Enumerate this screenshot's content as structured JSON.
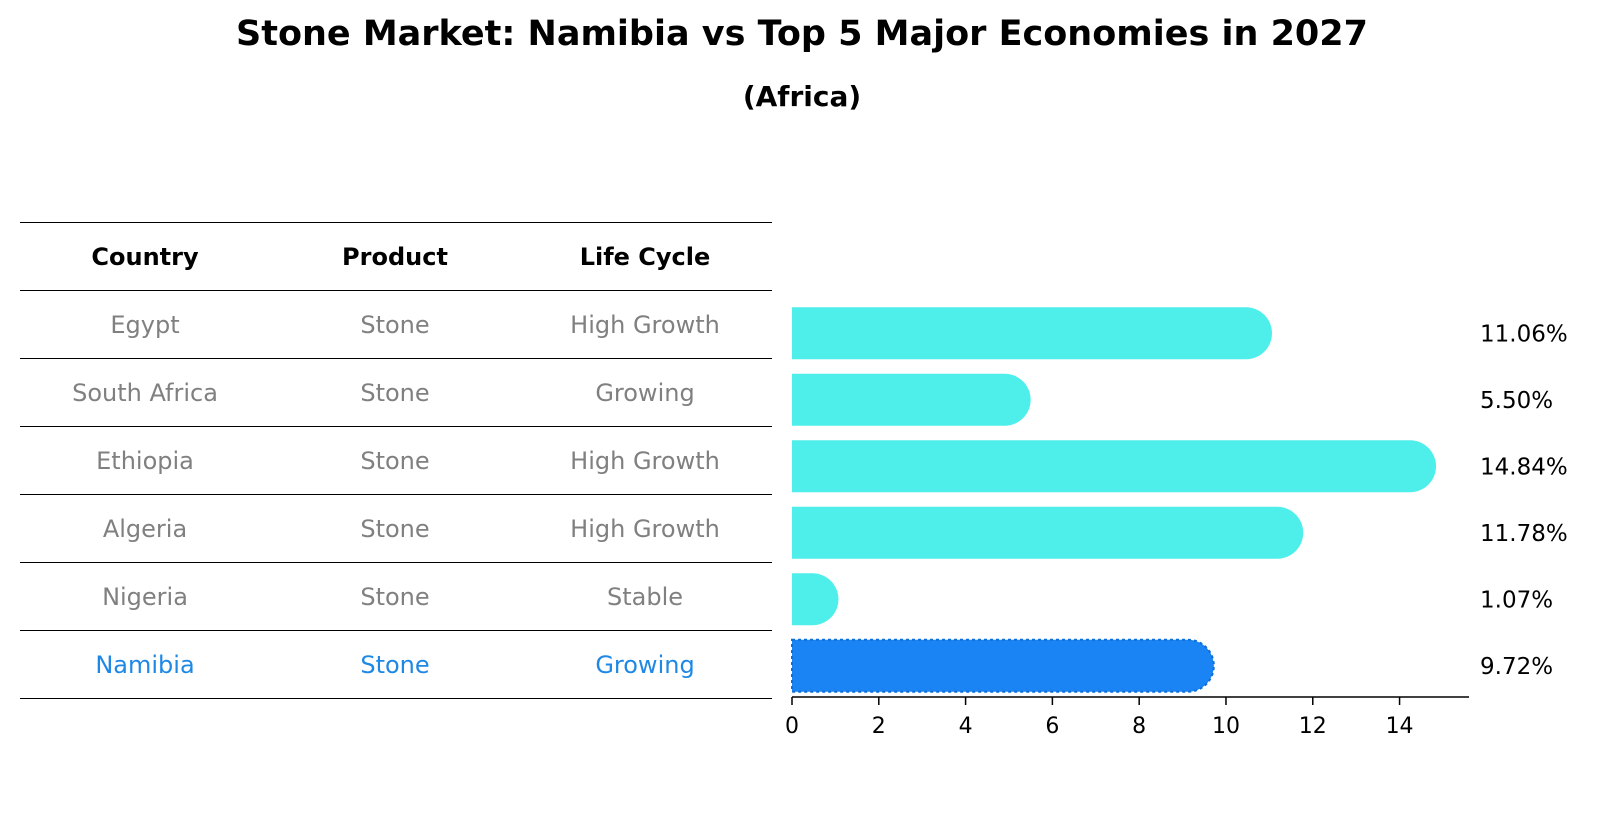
{
  "title": "Stone Market: Namibia vs Top 5 Major Economies in 2027",
  "subtitle": "(Africa)",
  "table": {
    "headers": [
      "Country",
      "Product",
      "Life Cycle"
    ],
    "rows": [
      [
        "Egypt",
        "Stone",
        "High Growth"
      ],
      [
        "South Africa",
        "Stone",
        "Growing"
      ],
      [
        "Ethiopia",
        "Stone",
        "High Growth"
      ],
      [
        "Algeria",
        "Stone",
        "High Growth"
      ],
      [
        "Nigeria",
        "Stone",
        "Stable"
      ],
      [
        "Namibia",
        "Stone",
        "Growing"
      ]
    ],
    "highlight_row": "Namibia"
  },
  "chart_data": {
    "type": "bar",
    "orientation": "horizontal",
    "categories": [
      "Egypt",
      "South Africa",
      "Ethiopia",
      "Algeria",
      "Nigeria",
      "Namibia"
    ],
    "values": [
      11.06,
      5.5,
      14.84,
      11.78,
      1.07,
      9.72
    ],
    "value_labels": [
      "11.06%",
      "5.50%",
      "14.84%",
      "11.78%",
      "1.07%",
      "9.72%"
    ],
    "xlim": [
      0,
      15.6
    ],
    "xticks": [
      0,
      2,
      4,
      6,
      8,
      10,
      12,
      14
    ],
    "highlight": "Namibia",
    "colors": {
      "default": "#4EEEEB",
      "highlight": "#1A84F5"
    },
    "grid": false
  }
}
